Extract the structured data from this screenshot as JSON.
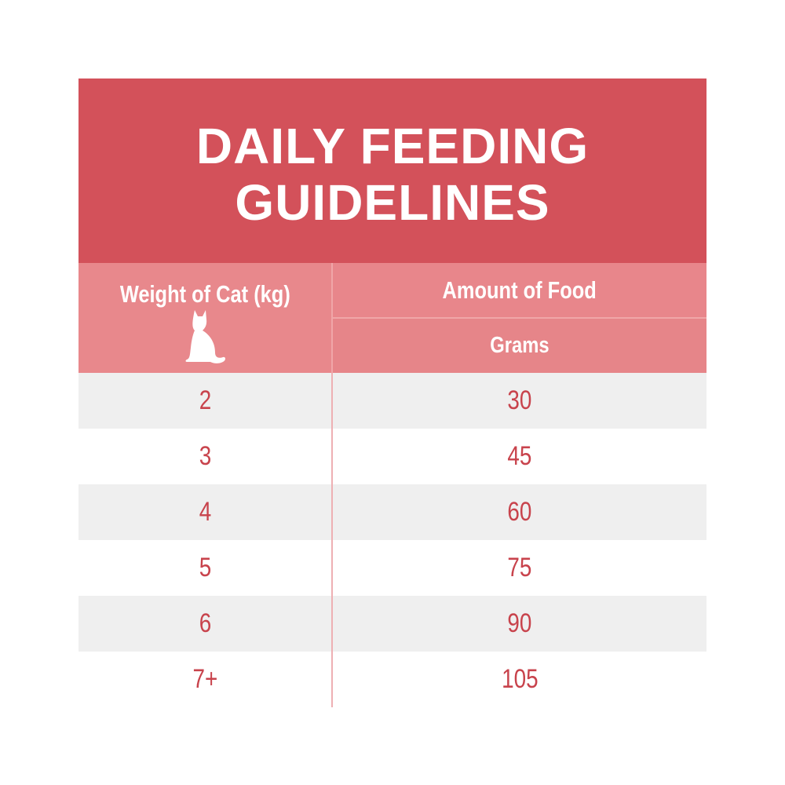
{
  "header": {
    "title": "DAILY FEEDING GUIDELINES"
  },
  "table": {
    "column_headers": [
      "Weight of Cat (kg)",
      "Amount of Food"
    ],
    "sub_header": "Grams",
    "rows": [
      [
        "2",
        "30"
      ],
      [
        "3",
        "45"
      ],
      [
        "4",
        "60"
      ],
      [
        "5",
        "75"
      ],
      [
        "6",
        "90"
      ],
      [
        "7+",
        "105"
      ]
    ]
  }
}
